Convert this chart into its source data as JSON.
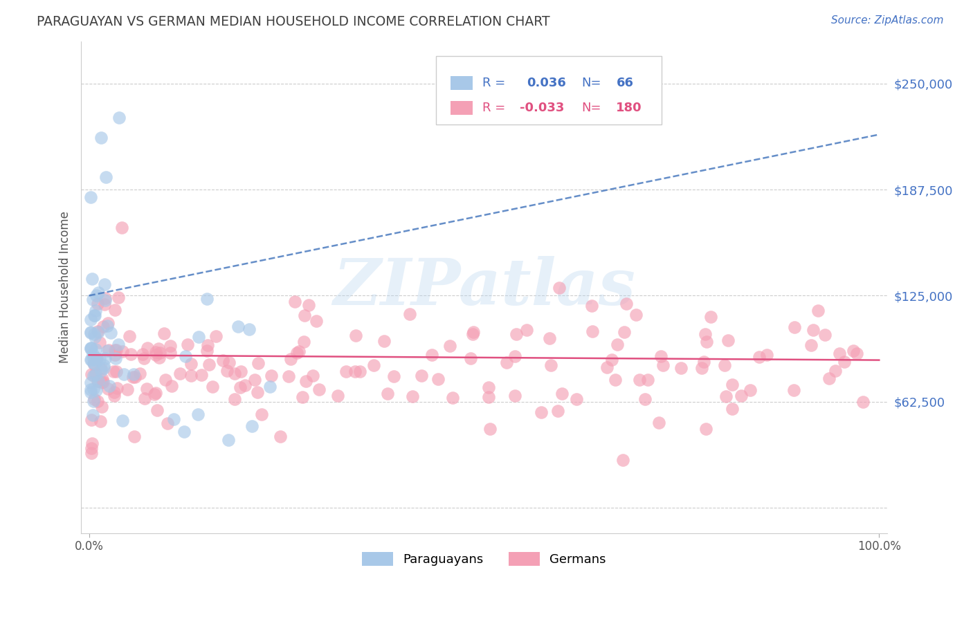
{
  "title": "PARAGUAYAN VS GERMAN MEDIAN HOUSEHOLD INCOME CORRELATION CHART",
  "source_text": "Source: ZipAtlas.com",
  "ylabel": "Median Household Income",
  "paraguayan_color": "#a8c8e8",
  "german_color": "#f4a0b5",
  "paraguayan_line_color": "#4a7abf",
  "german_line_color": "#e05080",
  "axis_label_color": "#4472c4",
  "title_color": "#404040",
  "watermark": "ZIPatlas",
  "paraguayan_R": 0.036,
  "paraguayan_N": 66,
  "german_R": -0.033,
  "german_N": 180,
  "para_line_x": [
    0,
    100
  ],
  "para_line_y": [
    125000,
    220000
  ],
  "germ_line_x": [
    0,
    100
  ],
  "germ_line_y": [
    90000,
    87000
  ],
  "yticks": [
    0,
    62500,
    125000,
    187500,
    250000
  ],
  "ytick_labels": [
    "",
    "$62,500",
    "$125,000",
    "$187,500",
    "$250,000"
  ],
  "ylim": [
    -15000,
    275000
  ],
  "xlim": [
    -1,
    101
  ]
}
